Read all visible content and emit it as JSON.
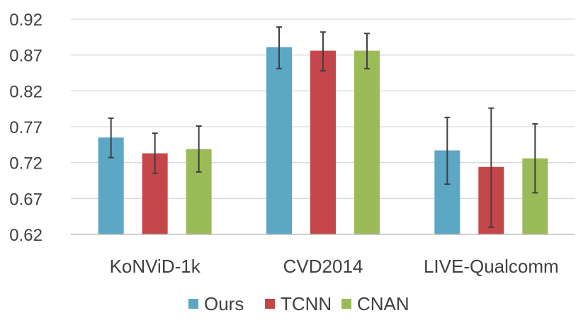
{
  "chart_data": {
    "type": "bar",
    "title": "",
    "xlabel": "",
    "ylabel": "",
    "categories": [
      "KoNViD-1k",
      "CVD2014",
      "LIVE-Qualcomm"
    ],
    "ylim": [
      0.62,
      0.92
    ],
    "yticks": [
      "0.92",
      "0.87",
      "0.82",
      "0.77",
      "0.72",
      "0.67",
      "0.62"
    ],
    "ytick_values": [
      0.92,
      0.87,
      0.82,
      0.77,
      0.72,
      0.67,
      0.62
    ],
    "grid": true,
    "legend_position": "bottom",
    "series": [
      {
        "name": "Ours",
        "color": "#5ba7c4",
        "values": [
          0.755,
          0.881,
          0.737
        ],
        "error_low": [
          0.727,
          0.851,
          0.69
        ],
        "error_high": [
          0.782,
          0.909,
          0.783
        ]
      },
      {
        "name": "TCNN",
        "color": "#c5464a",
        "values": [
          0.733,
          0.876,
          0.714
        ],
        "error_low": [
          0.705,
          0.848,
          0.63
        ],
        "error_high": [
          0.761,
          0.902,
          0.796
        ]
      },
      {
        "name": "CNAN",
        "color": "#9bbb59",
        "values": [
          0.739,
          0.876,
          0.726
        ],
        "error_low": [
          0.707,
          0.851,
          0.678
        ],
        "error_high": [
          0.771,
          0.9,
          0.774
        ]
      }
    ]
  }
}
